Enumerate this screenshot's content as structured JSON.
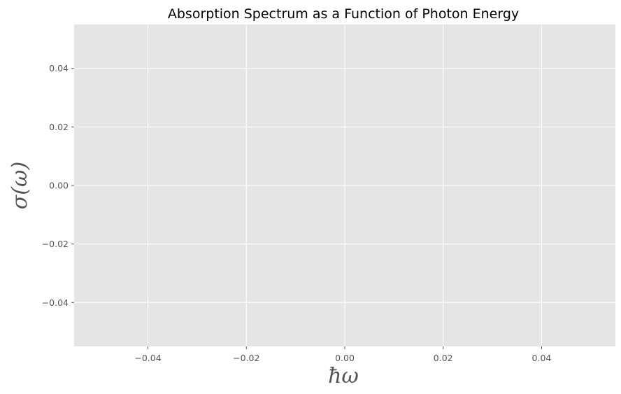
{
  "chart_data": {
    "type": "line",
    "title": "Absorption Spectrum as a Function of Photon Energy",
    "xlabel": "ħω",
    "ylabel": "σ(ω)",
    "xlim": [
      -0.055,
      0.055
    ],
    "ylim": [
      -0.055,
      0.055
    ],
    "xticks": [
      -0.04,
      -0.02,
      0.0,
      0.02,
      0.04
    ],
    "yticks": [
      -0.04,
      -0.02,
      0.0,
      0.02,
      0.04
    ],
    "xtick_labels": [
      "−0.04",
      "−0.02",
      "0.00",
      "0.02",
      "0.04"
    ],
    "ytick_labels": [
      "−0.04",
      "−0.02",
      "0.00",
      "0.02",
      "0.04"
    ],
    "grid": true,
    "series": [],
    "colors": {
      "plot_background": "#e5e5e5",
      "grid": "#ffffff",
      "tick_text": "#555555",
      "title_text": "#000000"
    }
  }
}
